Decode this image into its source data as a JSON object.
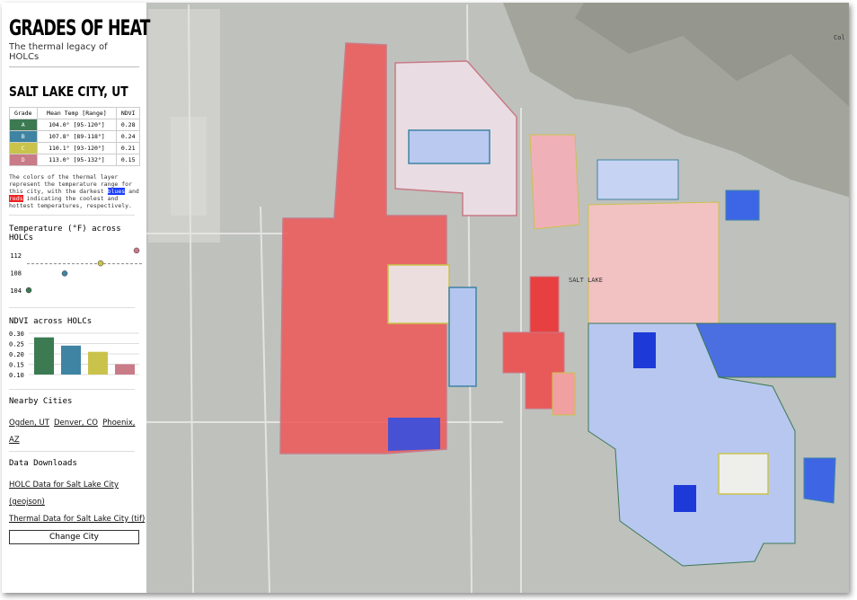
{
  "header": {
    "title": "GRADES OF HEAT",
    "subtitle": "The thermal legacy of HOLCs"
  },
  "city": "SALT LAKE CITY, UT",
  "table": {
    "headers": [
      "Grade",
      "Mean Temp [Range]",
      "NDVI"
    ],
    "rows": [
      {
        "grade": "A",
        "color": "#3c7a52",
        "temp": "104.0° [95-120°]",
        "ndvi": "0.28"
      },
      {
        "grade": "B",
        "color": "#3f84a2",
        "temp": "107.8° [89-118°]",
        "ndvi": "0.24"
      },
      {
        "grade": "C",
        "color": "#c9c34c",
        "temp": "110.1° [93-120°]",
        "ndvi": "0.21"
      },
      {
        "grade": "D",
        "color": "#c97b87",
        "temp": "113.0° [95-132°]",
        "ndvi": "0.15"
      }
    ]
  },
  "description": {
    "before": "The colors of the thermal layer represent the temperature range for this city, with the darkest",
    "blues": "blues",
    "middle": "and",
    "reds": "reds",
    "after": "indicating the coolest and hottest temperatures, respectively."
  },
  "temp_chart": {
    "title": "Temperature (°F) across HOLCs",
    "categories": [
      "A",
      "B",
      "C",
      "D"
    ],
    "values": [
      104.0,
      107.8,
      110.1,
      113.0
    ],
    "mean_line": 110,
    "ylim": [
      103,
      114
    ],
    "yticks": [
      104,
      108,
      112
    ]
  },
  "ndvi_chart": {
    "title": "NDVI across HOLCs",
    "categories": [
      "A",
      "B",
      "C",
      "D"
    ],
    "values": [
      0.28,
      0.24,
      0.21,
      0.15
    ],
    "ylim": [
      0.1,
      0.3
    ],
    "yticks": [
      {
        "value": 0.3,
        "label": "0.30"
      },
      {
        "value": 0.25,
        "label": "0.25"
      },
      {
        "value": 0.2,
        "label": "0.20"
      },
      {
        "value": 0.15,
        "label": "0.15"
      },
      {
        "value": 0.1,
        "label": "0.10"
      }
    ]
  },
  "nearby": {
    "title": "Nearby Cities",
    "cities": [
      "Ogden, UT",
      "Denver, CO",
      "Phoenix, AZ"
    ]
  },
  "downloads": {
    "title": "Data Downloads",
    "links": [
      "HOLC Data for Salt Lake City (geojson)",
      "Thermal Data for Salt Lake City (tif)"
    ]
  },
  "button": "Change City",
  "map": {
    "labels": [
      "SALT LAKE",
      "Col"
    ]
  }
}
